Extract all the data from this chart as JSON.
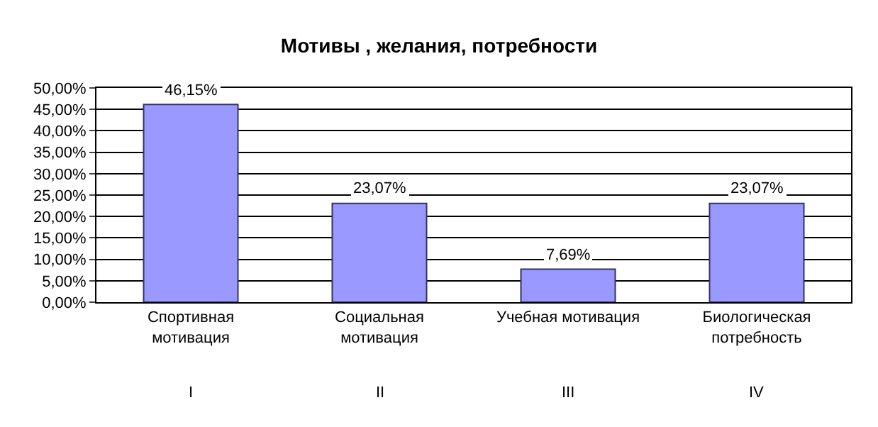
{
  "chart_data": {
    "type": "bar",
    "title": "Мотивы , желания, потребности",
    "categories": [
      "Спортивная мотивация",
      "Социальная мотивация",
      "Учебная мотивация",
      "Биологическая потребность"
    ],
    "values": [
      46.15,
      23.07,
      7.69,
      23.07
    ],
    "value_labels": [
      "46,15%",
      "23,07%",
      "7,69%",
      "23,07%"
    ],
    "color": "#9999ff",
    "ylim": [
      0,
      50
    ],
    "yticks": [
      {
        "value": 0,
        "label": "0,00%"
      },
      {
        "value": 5,
        "label": "5,00%"
      },
      {
        "value": 10,
        "label": "10,00%"
      },
      {
        "value": 15,
        "label": "15,00%"
      },
      {
        "value": 20,
        "label": "20,00%"
      },
      {
        "value": 25,
        "label": "25,00%"
      },
      {
        "value": 30,
        "label": "30,00%"
      },
      {
        "value": 35,
        "label": "35,00%"
      },
      {
        "value": 40,
        "label": "40,00%"
      },
      {
        "value": 45,
        "label": "45,00%"
      },
      {
        "value": 50,
        "label": "50,00%"
      }
    ],
    "annotations": [
      "I",
      "II",
      "III",
      "IV"
    ],
    "grid": "y",
    "legend": false
  }
}
